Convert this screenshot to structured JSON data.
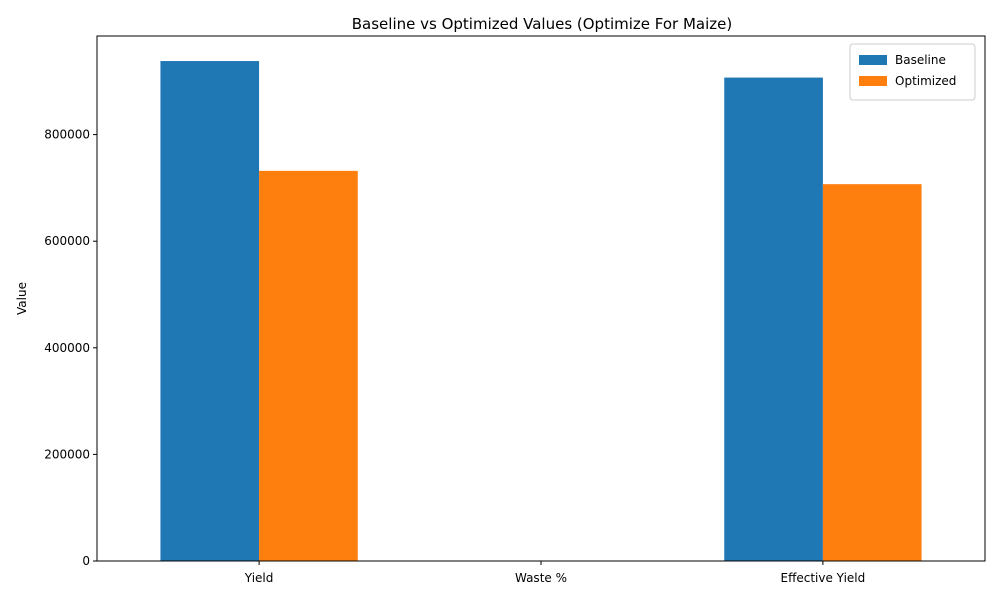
{
  "colors": {
    "baseline": "#1f77b4",
    "optimized": "#ff7f0e"
  },
  "chart_data": {
    "type": "bar",
    "title": "Baseline vs Optimized Values (Optimize For Maize)",
    "xlabel": "",
    "ylabel": "Value",
    "categories": [
      "Yield",
      "Waste %",
      "Effective Yield"
    ],
    "series": [
      {
        "name": "Baseline",
        "values": [
          938000,
          0,
          907000
        ]
      },
      {
        "name": "Optimized",
        "values": [
          732000,
          0,
          707000
        ]
      }
    ],
    "ylim": [
      0,
      985000
    ],
    "yticks": [
      0,
      200000,
      400000,
      600000,
      800000
    ],
    "ytick_labels": [
      "0",
      "200000",
      "400000",
      "600000",
      "800000"
    ],
    "grid": false,
    "legend_position": "top-right"
  }
}
